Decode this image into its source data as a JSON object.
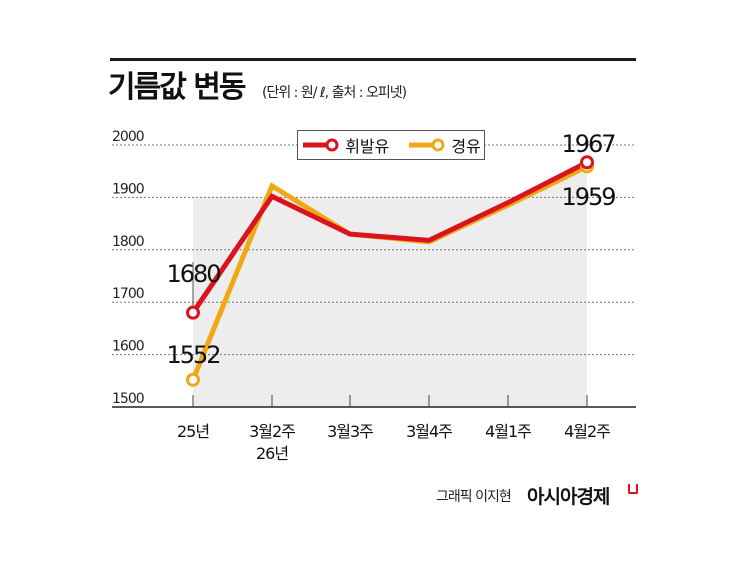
{
  "header": {
    "title": "기름값 변동",
    "subtitle": "(단위 : 원/ ℓ, 출처 : 오피넷)"
  },
  "legend": {
    "items": [
      {
        "label": "휘발유",
        "color": "#d9141d"
      },
      {
        "label": "경유",
        "color": "#f0a814"
      }
    ]
  },
  "footer": {
    "credit": "그래픽 이지현",
    "brand": "아시아경제"
  },
  "chart_data": {
    "type": "line",
    "title": "기름값 변동",
    "subtitle": "(단위 : 원/ ℓ, 출처 : 오피넷)",
    "xlabel": "",
    "ylabel": "원/ℓ",
    "categories": [
      "25년",
      "3월2주\n26년",
      "3월3주",
      "3월4주",
      "4월1주",
      "4월2주"
    ],
    "category_lines": [
      [
        "25년"
      ],
      [
        "3월2주",
        "26년"
      ],
      [
        "3월3주"
      ],
      [
        "3월4주"
      ],
      [
        "4월1주"
      ],
      [
        "4월2주"
      ]
    ],
    "series": [
      {
        "name": "휘발유",
        "color": "#d9141d",
        "values": [
          1680,
          1902,
          1830,
          1818,
          1890,
          1967
        ]
      },
      {
        "name": "경유",
        "color": "#f0a814",
        "values": [
          1552,
          1922,
          1830,
          1815,
          1885,
          1959
        ]
      }
    ],
    "annotations": [
      {
        "series": "휘발유",
        "index": 0,
        "text": "1680"
      },
      {
        "series": "경유",
        "index": 0,
        "text": "1552"
      },
      {
        "series": "휘발유",
        "index": 5,
        "text": "1967"
      },
      {
        "series": "경유",
        "index": 5,
        "text": "1959"
      }
    ],
    "yticks": [
      1500,
      1600,
      1700,
      1800,
      1900,
      2000
    ],
    "ylim": [
      1500,
      2000
    ],
    "grid": true,
    "grid_style": "dotted",
    "legend_position": "top-center",
    "shaded_area": true,
    "shaded_color": "#ededed"
  }
}
